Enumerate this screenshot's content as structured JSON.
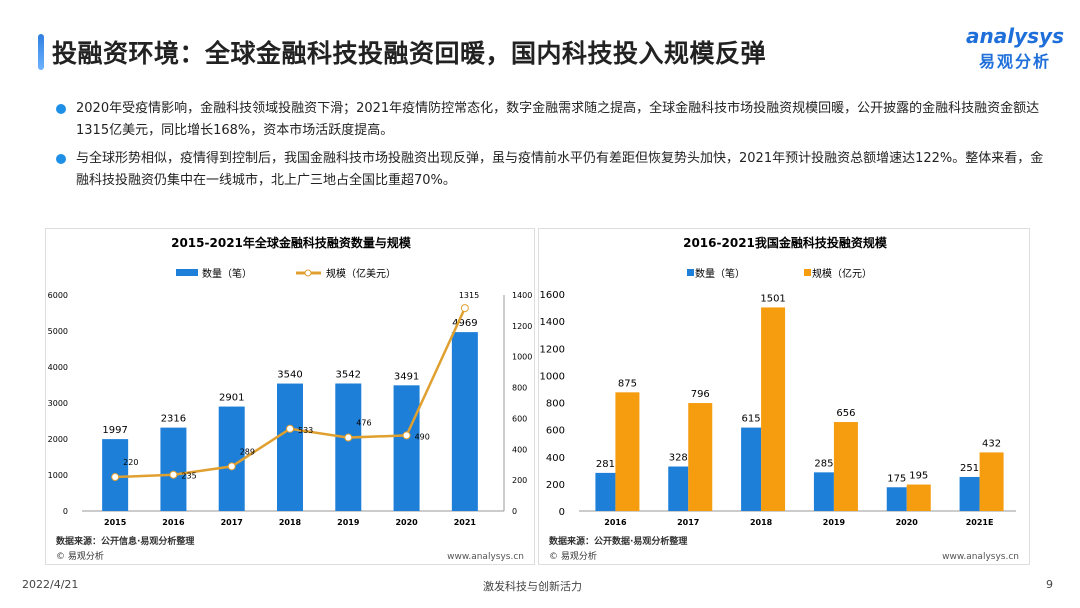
{
  "header": {
    "title": "投融资环境：全球金融科技投融资回暖，国内科技投入规模反弹",
    "logo_en": "analysys",
    "logo_cn": "易观分析"
  },
  "bullets": [
    "2020年受疫情影响，金融科技领域投融资下滑；2021年疫情防控常态化，数字金融需求随之提高，全球金融科技市场投融资规模回暖，公开披露的金融科技融资金额达1315亿美元，同比增长168%，资本市场活跃度提高。",
    "与全球形势相似，疫情得到控制后，我国金融科技市场投融资出现反弹，虽与疫情前水平仍有差距但恢复势头加快，2021年预计投融资总额增速达122%。整体来看，金融科技投融资仍集中在一线城市，北上广三地占全国比重超70%。"
  ],
  "chart_data": [
    {
      "type": "bar+line",
      "title": "2015-2021年全球金融科技融资数量与规模",
      "categories": [
        "2015",
        "2016",
        "2017",
        "2018",
        "2019",
        "2020",
        "2021"
      ],
      "series": [
        {
          "name": "数量（笔）",
          "type": "bar",
          "axis": "left",
          "color": "#1e7fd9",
          "values": [
            1997,
            2316,
            2901,
            3540,
            3542,
            3491,
            4969
          ]
        },
        {
          "name": "规模（亿美元）",
          "type": "line",
          "axis": "right",
          "color": "#e0a030",
          "values": [
            220,
            235,
            289,
            533,
            476,
            490,
            1315
          ]
        }
      ],
      "ylim_left": [
        0,
        6000
      ],
      "yticks_left": [
        0,
        1000,
        2000,
        3000,
        4000,
        5000,
        6000
      ],
      "ylim_right": [
        0,
        1400
      ],
      "yticks_right": [
        0,
        200,
        400,
        600,
        800,
        1000,
        1200,
        1400
      ],
      "legend": "top",
      "source": "数据来源：公开信息·易观分析整理",
      "copyright": "© 易观分析",
      "website": "www.analysys.cn"
    },
    {
      "type": "bar",
      "title": "2016-2021我国金融科技投融资规模",
      "categories": [
        "2016",
        "2017",
        "2018",
        "2019",
        "2020",
        "2021E"
      ],
      "series": [
        {
          "name": "数量（笔）",
          "color": "#1e7fd9",
          "values": [
            281,
            328,
            615,
            285,
            175,
            251
          ]
        },
        {
          "name": "规模（亿元）",
          "color": "#f59c0f",
          "values": [
            875,
            796,
            1501,
            656,
            195,
            432
          ]
        }
      ],
      "ylim": [
        0,
        1600
      ],
      "yticks": [
        0,
        200,
        400,
        600,
        800,
        1000,
        1200,
        1400,
        1600
      ],
      "legend": "top",
      "source": "数据来源：公开数据·易观分析整理",
      "copyright": "© 易观分析",
      "website": "www.analysys.cn"
    }
  ],
  "footer": {
    "date": "2022/4/21",
    "slogan": "激发科技与创新活力",
    "page": "9"
  }
}
